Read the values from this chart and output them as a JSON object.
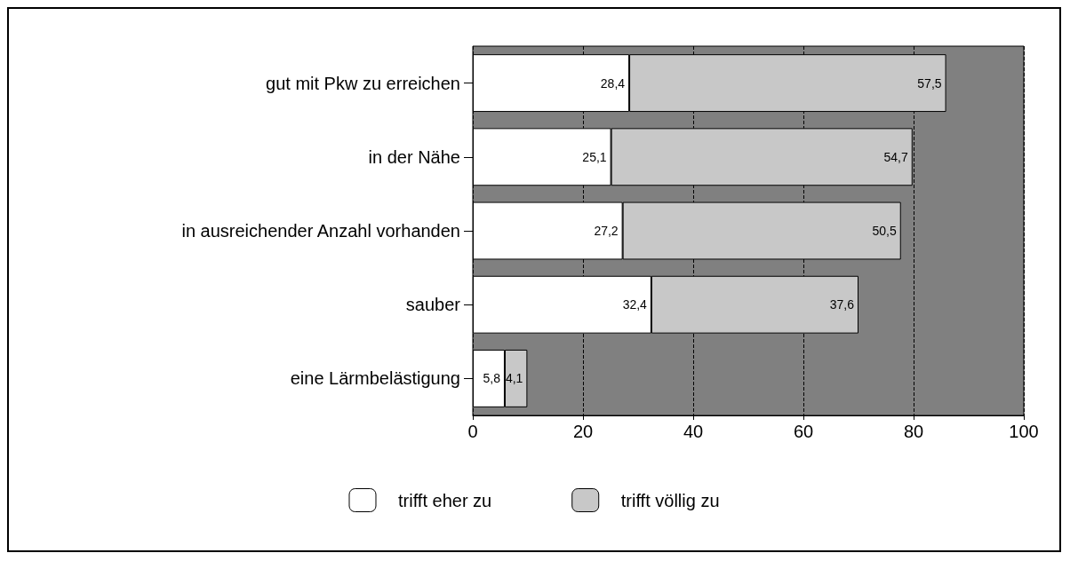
{
  "chart_data": {
    "type": "bar",
    "orientation": "horizontal",
    "stacked": true,
    "categories": [
      "gut mit Pkw zu erreichen",
      "in der Nähe",
      "in ausreichender Anzahl vorhanden",
      "sauber",
      "eine Lärmbelästigung"
    ],
    "series": [
      {
        "name": "trifft eher zu",
        "color": "#ffffff",
        "values": [
          28.4,
          25.1,
          27.2,
          32.4,
          5.8
        ],
        "value_labels": [
          "28,4",
          "25,1",
          "27,2",
          "32,4",
          "5,8"
        ]
      },
      {
        "name": "trifft völlig zu",
        "color": "#c8c8c8",
        "values": [
          57.5,
          54.7,
          50.5,
          37.6,
          4.1
        ],
        "value_labels": [
          "57,5",
          "54,7",
          "50,5",
          "37,6",
          "4,1"
        ]
      }
    ],
    "xlim": [
      0,
      100
    ],
    "xticks": [
      0,
      20,
      40,
      60,
      80,
      100
    ],
    "grid": "x",
    "line_style": "dashed",
    "legend": "bottom"
  }
}
